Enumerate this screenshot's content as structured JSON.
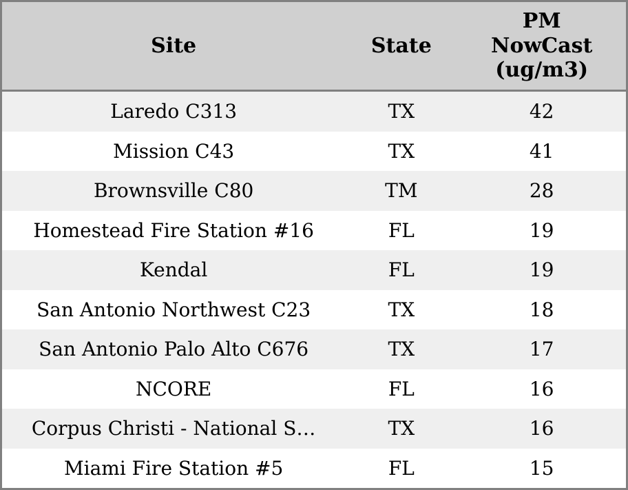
{
  "widget_title": "PM NowCast site table",
  "colors": {
    "border": "#808080",
    "header_background": "#d0d0d0",
    "row_stripe": "#efefef",
    "row_plain": "#ffffff",
    "text": "#000000"
  },
  "table": {
    "header": {
      "site": "Site",
      "state": "State",
      "pm": "PM\nNowCast\n(ug/m3)"
    },
    "rows": [
      {
        "site": "Laredo C313",
        "state": "TX",
        "pm": "42"
      },
      {
        "site": "Mission C43",
        "state": "TX",
        "pm": "41"
      },
      {
        "site": "Brownsville C80",
        "state": "TM",
        "pm": "28"
      },
      {
        "site": "Homestead Fire Station #16",
        "state": "FL",
        "pm": "19"
      },
      {
        "site": "Kendal",
        "state": "FL",
        "pm": "19"
      },
      {
        "site": "San Antonio Northwest C23",
        "state": "TX",
        "pm": "18"
      },
      {
        "site": "San Antonio Palo Alto C676",
        "state": "TX",
        "pm": "17"
      },
      {
        "site": "NCORE",
        "state": "FL",
        "pm": "16"
      },
      {
        "site": "Corpus Christi - National S…",
        "state": "TX",
        "pm": "16"
      },
      {
        "site": "Miami Fire Station #5",
        "state": "FL",
        "pm": "15"
      }
    ]
  },
  "chart_data": {
    "type": "table",
    "title": "",
    "columns": [
      "Site",
      "State",
      "PM NowCast (ug/m3)"
    ],
    "rows": [
      [
        "Laredo C313",
        "TX",
        42
      ],
      [
        "Mission C43",
        "TX",
        41
      ],
      [
        "Brownsville C80",
        "TM",
        28
      ],
      [
        "Homestead Fire Station #16",
        "FL",
        19
      ],
      [
        "Kendal",
        "FL",
        19
      ],
      [
        "San Antonio Northwest C23",
        "TX",
        18
      ],
      [
        "San Antonio Palo Alto C676",
        "TX",
        17
      ],
      [
        "NCORE",
        "FL",
        16
      ],
      [
        "Corpus Christi - National S…",
        "TX",
        16
      ],
      [
        "Miami Fire Station #5",
        "FL",
        15
      ]
    ],
    "layout_hints": {
      "zebra_striping": true,
      "first_data_row_shaded": true,
      "header_bold": true,
      "all_cells_centered": true
    }
  }
}
